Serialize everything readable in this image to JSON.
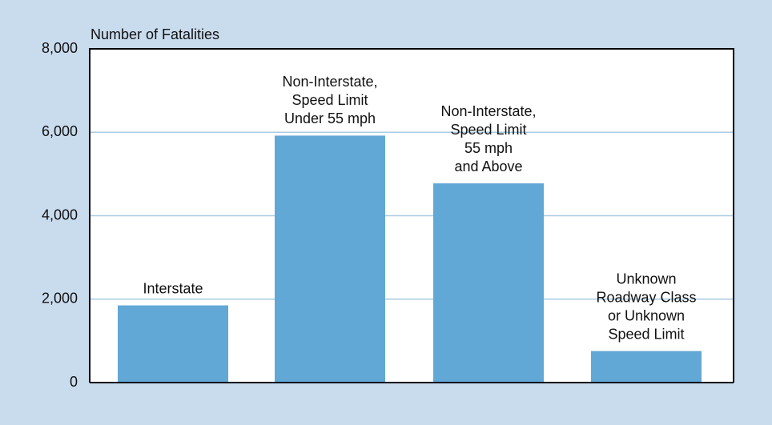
{
  "chart_data": {
    "type": "bar",
    "y_label": "Number of Fatalities",
    "categories": [
      [
        "Interstate"
      ],
      [
        "Non-Interstate,",
        "Speed Limit",
        "Under 55 mph"
      ],
      [
        "Non-Interstate,",
        "Speed Limit",
        "55 mph",
        "and Above"
      ],
      [
        "Unknown",
        "Roadway Class",
        "or Unknown",
        "Speed Limit"
      ]
    ],
    "values": [
      1850,
      5920,
      4775,
      756
    ],
    "color": "#62a8d6",
    "ylim": [
      0,
      8000
    ],
    "yticks": [
      0,
      {
        "value": 2000,
        "label": "2,000"
      },
      {
        "value": 4000,
        "label": "4,000"
      },
      {
        "value": 6000,
        "label": "6,000"
      },
      {
        "value": 8000,
        "label": "8,000"
      }
    ],
    "grid": true
  }
}
